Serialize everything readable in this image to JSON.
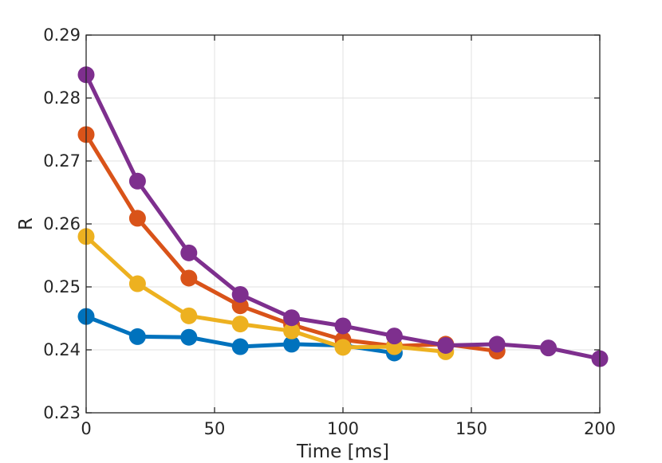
{
  "chart_data": {
    "type": "line",
    "xlabel": "Time [ms]",
    "ylabel": "R",
    "xlim": [
      0,
      200
    ],
    "ylim": [
      0.23,
      0.29
    ],
    "xticks": [
      0,
      50,
      100,
      150,
      200
    ],
    "xtick_labels": [
      "0",
      "50",
      "100",
      "150",
      "200"
    ],
    "yticks": [
      0.23,
      0.24,
      0.25,
      0.26,
      0.27,
      0.28,
      0.29
    ],
    "ytick_labels": [
      "0.23",
      "0.24",
      "0.25",
      "0.26",
      "0.27",
      "0.28",
      "0.29"
    ],
    "grid": true,
    "series": [
      {
        "color": "#0072BD",
        "x": [
          0,
          20,
          40,
          60,
          80,
          100,
          120
        ],
        "y": [
          0.2453,
          0.2421,
          0.242,
          0.2405,
          0.2409,
          0.2407,
          0.2395
        ]
      },
      {
        "color": "#D95319",
        "x": [
          0,
          20,
          40,
          60,
          80,
          100,
          120,
          140,
          160
        ],
        "y": [
          0.2742,
          0.2609,
          0.2514,
          0.247,
          0.244,
          0.2416,
          0.2406,
          0.2409,
          0.2398
        ]
      },
      {
        "color": "#EDB120",
        "x": [
          0,
          20,
          40,
          60,
          80,
          100,
          120,
          140
        ],
        "y": [
          0.258,
          0.2505,
          0.2454,
          0.2441,
          0.243,
          0.2404,
          0.2405,
          0.2397
        ]
      },
      {
        "color": "#7E2F8E",
        "x": [
          0,
          20,
          40,
          60,
          80,
          100,
          120,
          140,
          160,
          180,
          200
        ],
        "y": [
          0.2837,
          0.2668,
          0.2554,
          0.2488,
          0.2451,
          0.2438,
          0.2422,
          0.2407,
          0.2409,
          0.2403,
          0.2386
        ]
      }
    ]
  }
}
